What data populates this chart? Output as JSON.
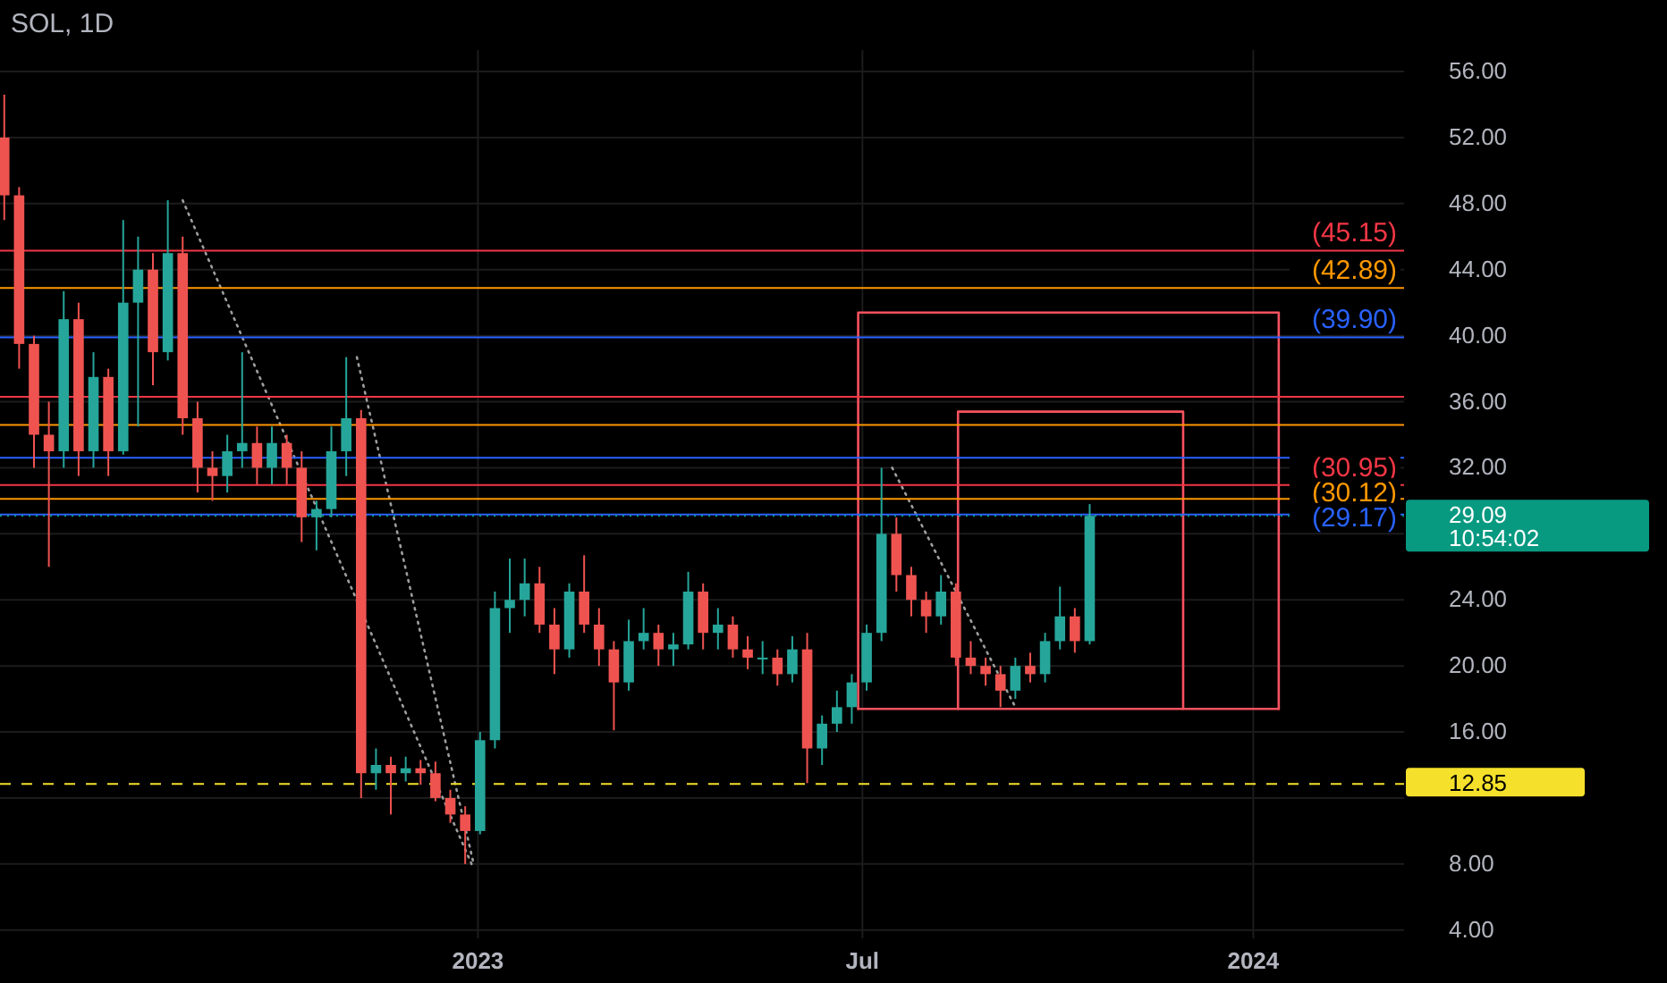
{
  "chart_data": {
    "type": "candlestick",
    "title": "SOL, 1D",
    "x": [
      "2022-05-23",
      "2022-05-30",
      "2022-06-06",
      "2022-06-13",
      "2022-06-20",
      "2022-06-27",
      "2022-07-04",
      "2022-07-11",
      "2022-07-18",
      "2022-07-25",
      "2022-08-01",
      "2022-08-08",
      "2022-08-15",
      "2022-08-22",
      "2022-08-29",
      "2022-09-05",
      "2022-09-12",
      "2022-09-19",
      "2022-09-26",
      "2022-10-03",
      "2022-10-10",
      "2022-10-17",
      "2022-10-24",
      "2022-10-31",
      "2022-11-07",
      "2022-11-14",
      "2022-11-21",
      "2022-11-28",
      "2022-12-05",
      "2022-12-12",
      "2022-12-19",
      "2022-12-26",
      "2023-01-02",
      "2023-01-09",
      "2023-01-16",
      "2023-01-23",
      "2023-01-30",
      "2023-02-06",
      "2023-02-13",
      "2023-02-20",
      "2023-02-27",
      "2023-03-06",
      "2023-03-13",
      "2023-03-20",
      "2023-03-27",
      "2023-04-03",
      "2023-04-10",
      "2023-04-17",
      "2023-04-24",
      "2023-05-01",
      "2023-05-08",
      "2023-05-15",
      "2023-05-22",
      "2023-05-29",
      "2023-06-05",
      "2023-06-12",
      "2023-06-19",
      "2023-06-26",
      "2023-07-03",
      "2023-07-10",
      "2023-07-17",
      "2023-07-24",
      "2023-07-31",
      "2023-08-07",
      "2023-08-14",
      "2023-08-21",
      "2023-08-28",
      "2023-09-04",
      "2023-09-11",
      "2023-09-18",
      "2023-09-25",
      "2023-10-02",
      "2023-10-09",
      "2023-10-16"
    ],
    "ohlc": [
      [
        52,
        54.6,
        47,
        48.5
      ],
      [
        48.5,
        49,
        38,
        39.5
      ],
      [
        39.5,
        40,
        32,
        34
      ],
      [
        34,
        36,
        26,
        33
      ],
      [
        33,
        42.7,
        32,
        41
      ],
      [
        41,
        42,
        31.5,
        33
      ],
      [
        33,
        39,
        32,
        37.5
      ],
      [
        37.5,
        38,
        31.5,
        33
      ],
      [
        33,
        47,
        32.8,
        42
      ],
      [
        42,
        46,
        34.5,
        44
      ],
      [
        44,
        45,
        37,
        39
      ],
      [
        39,
        48.2,
        38.5,
        45
      ],
      [
        45,
        46,
        34,
        35
      ],
      [
        35,
        36,
        30.5,
        32
      ],
      [
        32,
        33,
        30,
        31.5
      ],
      [
        31.5,
        34,
        30.5,
        33
      ],
      [
        33,
        39,
        32,
        33.5
      ],
      [
        33.5,
        34.5,
        31,
        32
      ],
      [
        32,
        34.5,
        31,
        33.5
      ],
      [
        33.5,
        34,
        31,
        32
      ],
      [
        32,
        33,
        27.5,
        29
      ],
      [
        29,
        30,
        27,
        29.5
      ],
      [
        29.5,
        34.5,
        29,
        33
      ],
      [
        33,
        38.7,
        31.5,
        35
      ],
      [
        35,
        35.5,
        12,
        13.5
      ],
      [
        13.5,
        15,
        12.5,
        14
      ],
      [
        14,
        14.5,
        11,
        13.5
      ],
      [
        13.5,
        14.5,
        13,
        13.8
      ],
      [
        13.8,
        14.3,
        12.8,
        13.5
      ],
      [
        13.5,
        14.2,
        11.8,
        12
      ],
      [
        12,
        12.5,
        10.5,
        11
      ],
      [
        11,
        11.5,
        8,
        10
      ],
      [
        10,
        16,
        9.8,
        15.5
      ],
      [
        15.5,
        24.5,
        15,
        23.5
      ],
      [
        23.5,
        26.5,
        22,
        24
      ],
      [
        24,
        26.5,
        23,
        25
      ],
      [
        25,
        26,
        22,
        22.5
      ],
      [
        22.5,
        23.5,
        19.5,
        21
      ],
      [
        21,
        25,
        20.5,
        24.5
      ],
      [
        24.5,
        26.7,
        22,
        22.5
      ],
      [
        22.5,
        23.5,
        20,
        21
      ],
      [
        21,
        21.5,
        16.1,
        19
      ],
      [
        19,
        22.8,
        18.5,
        21.5
      ],
      [
        21.5,
        23.5,
        21,
        22
      ],
      [
        22,
        22.5,
        20,
        21
      ],
      [
        21,
        22,
        20,
        21.3
      ],
      [
        21.3,
        25.7,
        21,
        24.5
      ],
      [
        24.5,
        25,
        21,
        22
      ],
      [
        22,
        23.5,
        21,
        22.5
      ],
      [
        22.5,
        23,
        20.5,
        21
      ],
      [
        21,
        21.8,
        19.8,
        20.5
      ],
      [
        20.5,
        21.5,
        19.5,
        20.5
      ],
      [
        20.5,
        21,
        18.8,
        19.5
      ],
      [
        19.5,
        21.8,
        19,
        21
      ],
      [
        21,
        22,
        12.9,
        15
      ],
      [
        15,
        17,
        14,
        16.5
      ],
      [
        16.5,
        18.5,
        16,
        17.5
      ],
      [
        17.5,
        19.5,
        16.5,
        19
      ],
      [
        19,
        22.5,
        18.5,
        22
      ],
      [
        22,
        32,
        21.5,
        28
      ],
      [
        28,
        29,
        24.5,
        25.5
      ],
      [
        25.5,
        26,
        23,
        24
      ],
      [
        24,
        24.5,
        22,
        23
      ],
      [
        23,
        25.5,
        22.5,
        24.5
      ],
      [
        24.5,
        25,
        20,
        20.5
      ],
      [
        20.5,
        21.5,
        19.5,
        20
      ],
      [
        20,
        20.5,
        18.8,
        19.5
      ],
      [
        19.5,
        20,
        17.5,
        18.5
      ],
      [
        18.5,
        20.5,
        18,
        20
      ],
      [
        20,
        20.8,
        19,
        19.5
      ],
      [
        19.5,
        22,
        19,
        21.5
      ],
      [
        21.5,
        24.8,
        21,
        23
      ],
      [
        23,
        23.5,
        20.8,
        21.5
      ],
      [
        21.5,
        29.8,
        21.3,
        29.09
      ]
    ],
    "series": [
      {
        "type": "line",
        "color": "#9e9e9e",
        "line_style": "dotted",
        "x": [
          "2022-08-15",
          "2022-12-29"
        ],
        "values": [
          48.2,
          8
        ]
      },
      {
        "type": "line",
        "color": "#9e9e9e",
        "line_style": "dotted",
        "x": [
          "2022-11-05",
          "2022-12-30"
        ],
        "values": [
          38.7,
          8
        ]
      },
      {
        "type": "line",
        "color": "#9e9e9e",
        "line_style": "dotted",
        "x": [
          "2023-07-15",
          "2023-09-11"
        ],
        "values": [
          32,
          17.5
        ]
      },
      {
        "type": "line",
        "color": "#f7525f",
        "line_style": "solid",
        "x": [
          "2023-06-29",
          "2023-06-29",
          "2024-01-13",
          "2024-01-13"
        ],
        "values": [
          17.4,
          41.4,
          41.4,
          17.4
        ]
      },
      {
        "type": "line",
        "color": "#f7525f",
        "line_style": "solid",
        "x": [
          "2023-08-15",
          "2023-08-15",
          "2023-11-29",
          "2023-11-29"
        ],
        "values": [
          17.4,
          35.4,
          35.4,
          17.4
        ]
      },
      {
        "type": "line",
        "color": "#f7525f",
        "line_style": "solid",
        "x": [
          "2023-06-29",
          "2024-01-13"
        ],
        "values": [
          17.4,
          17.4
        ]
      }
    ],
    "ref_lines": [
      {
        "axis": "y",
        "value": 45.15,
        "label": "(45.15)",
        "color": "#f23645",
        "line_style": "solid"
      },
      {
        "axis": "y",
        "value": 42.89,
        "label": "(42.89)",
        "color": "#ff9800",
        "line_style": "solid"
      },
      {
        "axis": "y",
        "value": 39.9,
        "label": "(39.90)",
        "color": "#2962ff",
        "line_style": "solid"
      },
      {
        "axis": "y",
        "value": 36.3,
        "color": "#f23645",
        "line_style": "solid"
      },
      {
        "axis": "y",
        "value": 34.6,
        "color": "#ff9800",
        "line_style": "solid"
      },
      {
        "axis": "y",
        "value": 32.6,
        "color": "#2962ff",
        "line_style": "solid"
      },
      {
        "axis": "y",
        "value": 30.95,
        "label": "(30.95)",
        "color": "#f23645",
        "line_style": "solid"
      },
      {
        "axis": "y",
        "value": 30.12,
        "label": "(30.12)",
        "color": "#ff9800",
        "line_style": "solid"
      },
      {
        "axis": "y",
        "value": 29.17,
        "label": "(29.17)",
        "color": "#2962ff",
        "line_style": "solid"
      },
      {
        "axis": "y",
        "value": 29.09,
        "label": "29.09",
        "color": "#089981",
        "line_style": "dotted"
      },
      {
        "axis": "y",
        "value": 12.85,
        "label": "12.85",
        "color": "#f5e12b",
        "line_style": "dashed"
      }
    ],
    "annotations": [
      "10:54:02"
    ],
    "xlim": [
      "2022-05-21",
      "2024-03-12"
    ],
    "xticks": [
      {
        "value": "2023-01-01",
        "label": "2023"
      },
      {
        "value": "2023-07-01",
        "label": "Jul"
      },
      {
        "value": "2024-01-01",
        "label": "2024"
      }
    ],
    "ylim": [
      3.5,
      57.3
    ],
    "yticks": [
      {
        "value": 4,
        "label": "4.00"
      },
      {
        "value": 8,
        "label": "8.00"
      },
      {
        "value": 12,
        "label": null
      },
      {
        "value": 16,
        "label": "16.00"
      },
      {
        "value": 20,
        "label": "20.00"
      },
      {
        "value": 24,
        "label": "24.00"
      },
      {
        "value": 28,
        "label": null
      },
      {
        "value": 32,
        "label": "32.00"
      },
      {
        "value": 36,
        "label": "36.00"
      },
      {
        "value": 40,
        "label": "40.00"
      },
      {
        "value": 44,
        "label": "44.00"
      },
      {
        "value": 48,
        "label": "48.00"
      },
      {
        "value": 52,
        "label": "52.00"
      },
      {
        "value": 56,
        "label": "56.00"
      }
    ],
    "grid": true
  }
}
